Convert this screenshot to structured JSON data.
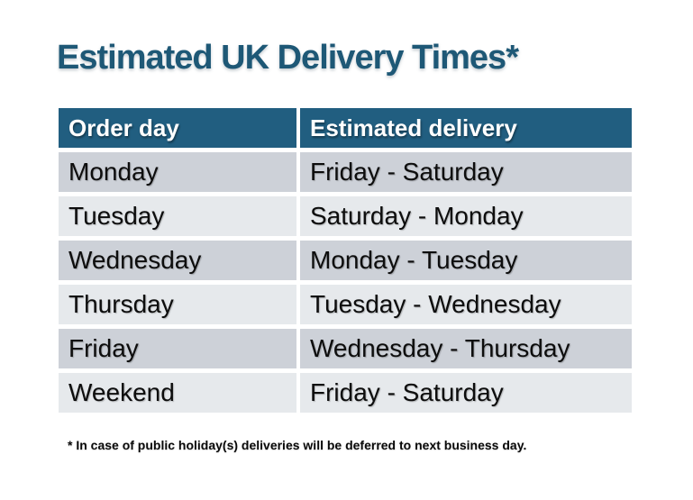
{
  "title": "Estimated UK Delivery Times*",
  "table": {
    "headers": [
      "Order day",
      "Estimated delivery"
    ],
    "rows": [
      {
        "order_day": "Monday",
        "delivery": "Friday - Saturday"
      },
      {
        "order_day": "Tuesday",
        "delivery": "Saturday - Monday"
      },
      {
        "order_day": "Wednesday",
        "delivery": "Monday - Tuesday"
      },
      {
        "order_day": "Thursday",
        "delivery": "Tuesday - Wednesday"
      },
      {
        "order_day": "Friday",
        "delivery": "Wednesday - Thursday"
      },
      {
        "order_day": "Weekend",
        "delivery": "Friday - Saturday"
      }
    ]
  },
  "footnote": "* In case of public holiday(s) deliveries will be deferred to next business day.",
  "colors": {
    "title_text": "#1E5876",
    "header_background": "#215E80",
    "header_text": "#FFFFFF",
    "row_stripe_dark": "#CDD1D8",
    "row_stripe_light": "#E6E9EC",
    "body_text": "#0D0D0D",
    "page_background": "#FFFFFF"
  }
}
